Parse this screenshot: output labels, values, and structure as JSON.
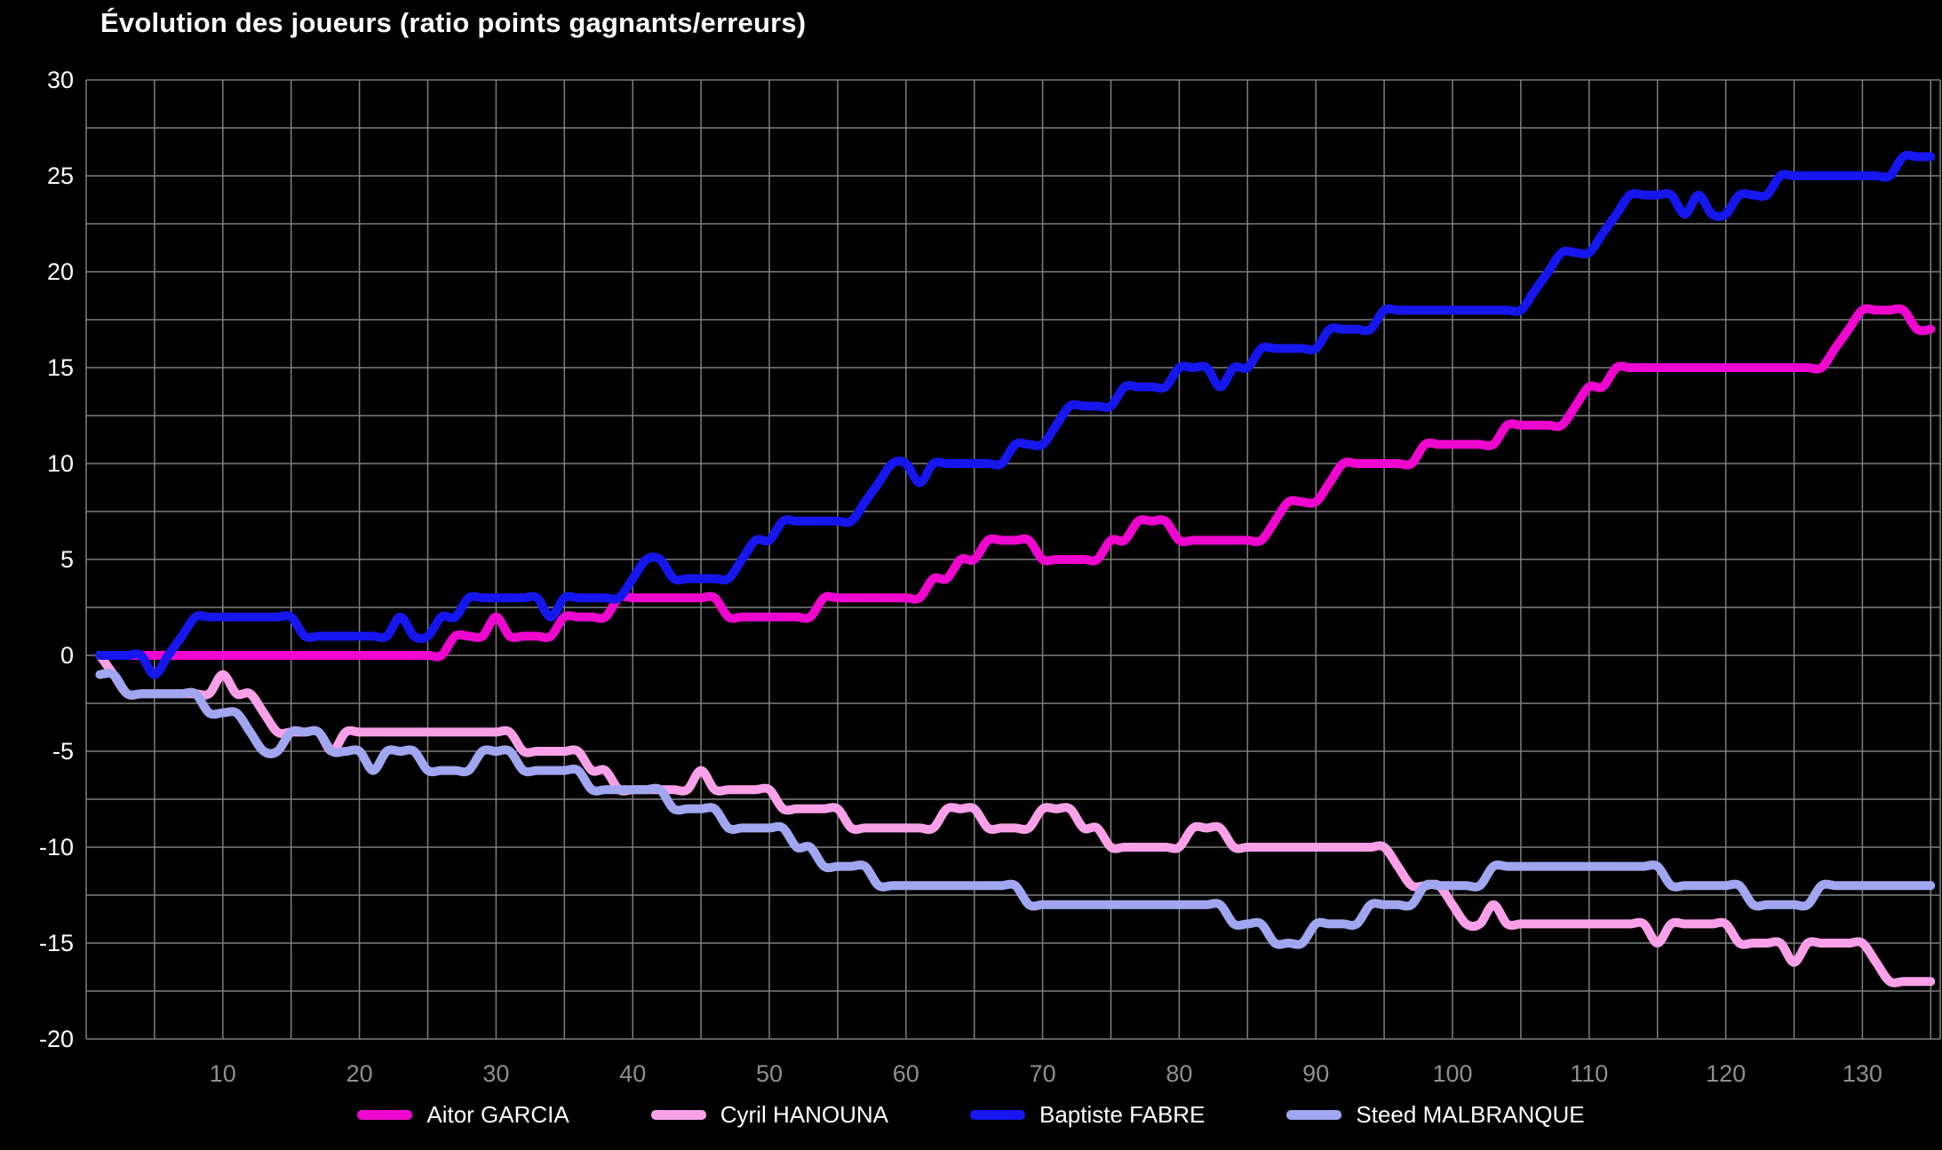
{
  "chart_data": {
    "type": "line",
    "title": "Évolution des joueurs (ratio points gagnants/erreurs)",
    "xlabel": "",
    "ylabel": "",
    "x_start": 1,
    "x_ticks": [
      10,
      20,
      30,
      40,
      50,
      60,
      70,
      80,
      90,
      100,
      110,
      120,
      130
    ],
    "x_grid_step": 5,
    "x_max": 135,
    "ylim": [
      -20,
      30
    ],
    "y_ticks": [
      30,
      25,
      20,
      15,
      10,
      5,
      0,
      -5,
      -10,
      -15,
      -20
    ],
    "y_grid_step": 2.5,
    "grid": true,
    "legend_position": "bottom",
    "background_color": "#000000",
    "grid_color": "#7f7f7f",
    "y_tick_color": "#ffffff",
    "x_tick_color": "#8f8f8f",
    "series": [
      {
        "name": "Aitor GARCIA",
        "color": "#ef06cf",
        "values": [
          0,
          0,
          0,
          0,
          0,
          0,
          0,
          0,
          0,
          0,
          0,
          0,
          0,
          0,
          0,
          0,
          0,
          0,
          0,
          0,
          0,
          0,
          0,
          0,
          0,
          0,
          1,
          1,
          1,
          2,
          1,
          1,
          1,
          1,
          2,
          2,
          2,
          2,
          3,
          3,
          3,
          3,
          3,
          3,
          3,
          3,
          2,
          2,
          2,
          2,
          2,
          2,
          2,
          3,
          3,
          3,
          3,
          3,
          3,
          3,
          3,
          4,
          4,
          5,
          5,
          6,
          6,
          6,
          6,
          5,
          5,
          5,
          5,
          5,
          6,
          6,
          7,
          7,
          7,
          6,
          6,
          6,
          6,
          6,
          6,
          6,
          7,
          8,
          8,
          8,
          9,
          10,
          10,
          10,
          10,
          10,
          10,
          11,
          11,
          11,
          11,
          11,
          11,
          12,
          12,
          12,
          12,
          12,
          13,
          14,
          14,
          15,
          15,
          15,
          15,
          15,
          15,
          15,
          15,
          15,
          15,
          15,
          15,
          15,
          15,
          15,
          15,
          16,
          17,
          18,
          18,
          18,
          18,
          17,
          17
        ]
      },
      {
        "name": "Cyril HANOUNA",
        "color": "#f9a0e8",
        "values": [
          0,
          -1,
          -2,
          -2,
          -2,
          -2,
          -2,
          -2,
          -2,
          -1,
          -2,
          -2,
          -3,
          -4,
          -4,
          -4,
          -4,
          -5,
          -4,
          -4,
          -4,
          -4,
          -4,
          -4,
          -4,
          -4,
          -4,
          -4,
          -4,
          -4,
          -4,
          -5,
          -5,
          -5,
          -5,
          -5,
          -6,
          -6,
          -7,
          -7,
          -7,
          -7,
          -7,
          -7,
          -6,
          -7,
          -7,
          -7,
          -7,
          -7,
          -8,
          -8,
          -8,
          -8,
          -8,
          -9,
          -9,
          -9,
          -9,
          -9,
          -9,
          -9,
          -8,
          -8,
          -8,
          -9,
          -9,
          -9,
          -9,
          -8,
          -8,
          -8,
          -9,
          -9,
          -10,
          -10,
          -10,
          -10,
          -10,
          -10,
          -9,
          -9,
          -9,
          -10,
          -10,
          -10,
          -10,
          -10,
          -10,
          -10,
          -10,
          -10,
          -10,
          -10,
          -10,
          -11,
          -12,
          -12,
          -12,
          -13,
          -14,
          -14,
          -13,
          -14,
          -14,
          -14,
          -14,
          -14,
          -14,
          -14,
          -14,
          -14,
          -14,
          -14,
          -15,
          -14,
          -14,
          -14,
          -14,
          -14,
          -15,
          -15,
          -15,
          -15,
          -16,
          -15,
          -15,
          -15,
          -15,
          -15,
          -16,
          -17,
          -17,
          -17,
          -17
        ]
      },
      {
        "name": "Baptiste FABRE",
        "color": "#1616ef",
        "values": [
          0,
          0,
          0,
          0,
          -1,
          0,
          1,
          2,
          2,
          2,
          2,
          2,
          2,
          2,
          2,
          1,
          1,
          1,
          1,
          1,
          1,
          1,
          2,
          1,
          1,
          2,
          2,
          3,
          3,
          3,
          3,
          3,
          3,
          2,
          3,
          3,
          3,
          3,
          3,
          4,
          5,
          5,
          4,
          4,
          4,
          4,
          4,
          5,
          6,
          6,
          7,
          7,
          7,
          7,
          7,
          7,
          8,
          9,
          10,
          10,
          9,
          10,
          10,
          10,
          10,
          10,
          10,
          11,
          11,
          11,
          12,
          13,
          13,
          13,
          13,
          14,
          14,
          14,
          14,
          15,
          15,
          15,
          14,
          15,
          15,
          16,
          16,
          16,
          16,
          16,
          17,
          17,
          17,
          17,
          18,
          18,
          18,
          18,
          18,
          18,
          18,
          18,
          18,
          18,
          18,
          19,
          20,
          21,
          21,
          21,
          22,
          23,
          24,
          24,
          24,
          24,
          23,
          24,
          23,
          23,
          24,
          24,
          24,
          25,
          25,
          25,
          25,
          25,
          25,
          25,
          25,
          25,
          26,
          26,
          26
        ]
      },
      {
        "name": "Steed MALBRANQUE",
        "color": "#a0a6ef",
        "values": [
          -1,
          -1,
          -2,
          -2,
          -2,
          -2,
          -2,
          -2,
          -3,
          -3,
          -3,
          -4,
          -5,
          -5,
          -4,
          -4,
          -4,
          -5,
          -5,
          -5,
          -6,
          -5,
          -5,
          -5,
          -6,
          -6,
          -6,
          -6,
          -5,
          -5,
          -5,
          -6,
          -6,
          -6,
          -6,
          -6,
          -7,
          -7,
          -7,
          -7,
          -7,
          -7,
          -8,
          -8,
          -8,
          -8,
          -9,
          -9,
          -9,
          -9,
          -9,
          -10,
          -10,
          -11,
          -11,
          -11,
          -11,
          -12,
          -12,
          -12,
          -12,
          -12,
          -12,
          -12,
          -12,
          -12,
          -12,
          -12,
          -13,
          -13,
          -13,
          -13,
          -13,
          -13,
          -13,
          -13,
          -13,
          -13,
          -13,
          -13,
          -13,
          -13,
          -13,
          -14,
          -14,
          -14,
          -15,
          -15,
          -15,
          -14,
          -14,
          -14,
          -14,
          -13,
          -13,
          -13,
          -13,
          -12,
          -12,
          -12,
          -12,
          -12,
          -11,
          -11,
          -11,
          -11,
          -11,
          -11,
          -11,
          -11,
          -11,
          -11,
          -11,
          -11,
          -11,
          -12,
          -12,
          -12,
          -12,
          -12,
          -12,
          -13,
          -13,
          -13,
          -13,
          -13,
          -12,
          -12,
          -12,
          -12,
          -12,
          -12,
          -12,
          -12,
          -12
        ]
      }
    ]
  }
}
